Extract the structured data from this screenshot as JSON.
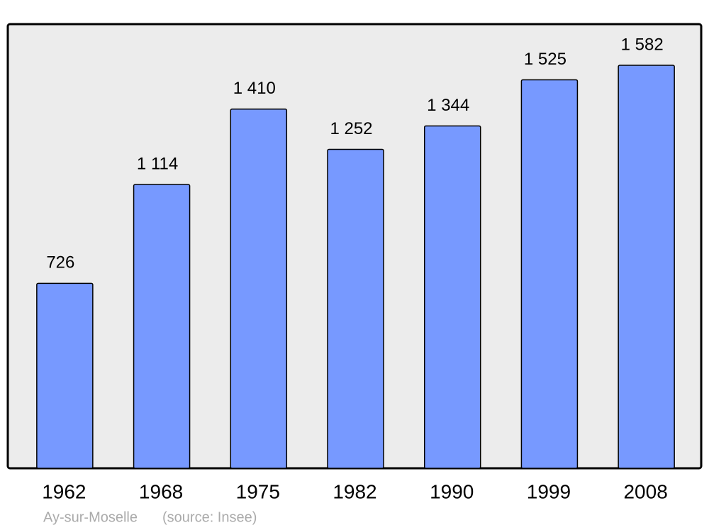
{
  "chart_data": {
    "type": "bar",
    "categories": [
      "1962",
      "1968",
      "1975",
      "1982",
      "1990",
      "1999",
      "2008"
    ],
    "values": [
      726,
      1114,
      1410,
      1252,
      1344,
      1525,
      1582
    ],
    "value_labels": [
      "726",
      "1 114",
      "1 410",
      "1 252",
      "1 344",
      "1 525",
      "1 582"
    ],
    "color": "#7799ff",
    "caption": "Ay-sur-Moselle",
    "source": "(source: Insee)"
  }
}
